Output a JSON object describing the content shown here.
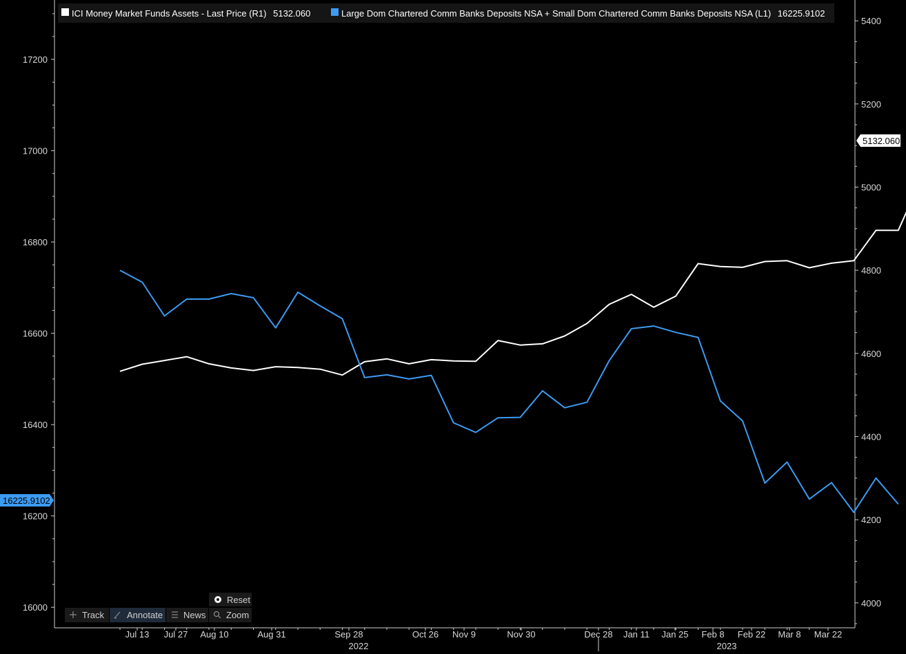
{
  "colors": {
    "background": "#000000",
    "mmf_line": "#ffffff",
    "deposits_line": "#3d9bf2",
    "axis": "#cfcfcf",
    "last_value_right_bg": "#ffffff",
    "last_value_left_bg": "#3d9bf2"
  },
  "legend": {
    "series1": {
      "label": "ICI Money Market Funds Assets - Last Price (R1)",
      "value": "5132.060",
      "color": "#ffffff"
    },
    "series2": {
      "label": "Large Dom Chartered Comm Banks Deposits NSA + Small Dom Chartered Comm Banks Deposits NSA (L1)",
      "value": "16225.9102",
      "color": "#3d9bf2"
    }
  },
  "toolbar": {
    "reset_label": "Reset",
    "track_label": "Track",
    "annotate_label": "Annotate",
    "news_label": "News",
    "zoom_label": "Zoom",
    "icons": {
      "reset": "radio-dot-icon",
      "track": "crosshair-icon",
      "annotate": "pencil-icon",
      "news": "list-icon",
      "zoom": "magnifier-icon"
    }
  },
  "chart_data": {
    "type": "line",
    "x_tick_labels": [
      "Jul 13",
      "Jul 27",
      "Aug 10",
      "Aug 31",
      "Sep 28",
      "Oct 26",
      "Nov 9",
      "Nov 30",
      "Dec 28",
      "Jan 11",
      "Jan 25",
      "Feb 8",
      "Feb 22",
      "Mar 8",
      "Mar 22"
    ],
    "x_year_labels": [
      "2022",
      "2023"
    ],
    "left_axis": {
      "ticks": [
        16000,
        16200,
        16400,
        16600,
        16800,
        17000,
        17200
      ],
      "range": [
        15955,
        17330
      ],
      "last_value_label": "16225.9102"
    },
    "right_axis": {
      "ticks": [
        4000,
        4200,
        4400,
        4600,
        4800,
        5000,
        5200,
        5400
      ],
      "range": [
        3940,
        5450
      ],
      "last_value_label": "5132.060"
    },
    "grid": false,
    "legend_position": "top-left",
    "series": [
      {
        "name": "ICI Money Market Funds Assets - Last Price (R1)",
        "axis": "right",
        "color": "#ffffff",
        "x": [
          "2022-07-06",
          "2022-07-13",
          "2022-07-20",
          "2022-07-27",
          "2022-08-03",
          "2022-08-10",
          "2022-08-17",
          "2022-08-24",
          "2022-08-31",
          "2022-09-07",
          "2022-09-14",
          "2022-09-21",
          "2022-09-28",
          "2022-10-05",
          "2022-10-12",
          "2022-10-19",
          "2022-10-26",
          "2022-11-02",
          "2022-11-09",
          "2022-11-16",
          "2022-11-23",
          "2022-11-30",
          "2022-12-07",
          "2022-12-14",
          "2022-12-21",
          "2022-12-28",
          "2023-01-04",
          "2023-01-11",
          "2023-01-18",
          "2023-01-25",
          "2023-02-01",
          "2023-02-08",
          "2023-02-15",
          "2023-02-22",
          "2023-03-01",
          "2023-03-08",
          "2023-03-15",
          "2023-03-22"
        ],
        "values": [
          4557,
          4574,
          4583,
          4592,
          4575,
          4565,
          4559,
          4568,
          4566,
          4562,
          4548,
          4580,
          4587,
          4575,
          4585,
          4582,
          4581,
          4631,
          4620,
          4623,
          4642,
          4672,
          4718,
          4742,
          4711,
          4738,
          4816,
          4809,
          4807,
          4821,
          4823,
          4806,
          4817,
          4823,
          4896,
          4896,
          5015,
          5132
        ]
      },
      {
        "name": "Large Dom Chartered Comm Banks Deposits NSA + Small Dom Chartered Comm Banks Deposits NSA (L1)",
        "axis": "left",
        "color": "#3d9bf2",
        "x": [
          "2022-07-06",
          "2022-07-13",
          "2022-07-20",
          "2022-07-27",
          "2022-08-03",
          "2022-08-10",
          "2022-08-17",
          "2022-08-24",
          "2022-08-31",
          "2022-09-07",
          "2022-09-14",
          "2022-09-21",
          "2022-09-28",
          "2022-10-05",
          "2022-10-12",
          "2022-10-19",
          "2022-10-26",
          "2022-11-02",
          "2022-11-09",
          "2022-11-16",
          "2022-11-23",
          "2022-11-30",
          "2022-12-07",
          "2022-12-14",
          "2022-12-21",
          "2022-12-28",
          "2023-01-04",
          "2023-01-11",
          "2023-01-18",
          "2023-01-25",
          "2023-02-01",
          "2023-02-08",
          "2023-02-15",
          "2023-02-22",
          "2023-03-01",
          "2023-03-08"
        ],
        "values": [
          16738,
          16712,
          16638,
          16675,
          16675,
          16687,
          16678,
          16612,
          16690,
          16660,
          16632,
          16503,
          16509,
          16500,
          16508,
          16404,
          16383,
          16415,
          16416,
          16474,
          16437,
          16449,
          16540,
          16610,
          16616,
          16602,
          16591,
          16452,
          16408,
          16272,
          16318,
          16237,
          16273,
          16208,
          16283,
          16226
        ]
      }
    ]
  }
}
